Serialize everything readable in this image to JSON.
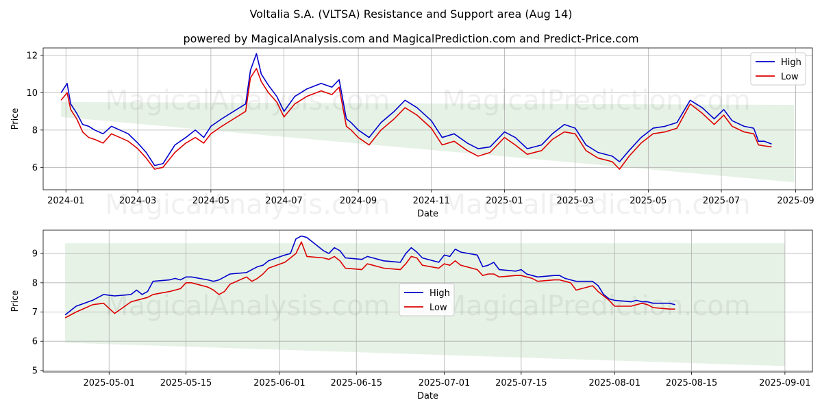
{
  "title": "Voltalia S.A. (VLTSA) Resistance and Support area (Aug 14)",
  "subtitle": "powered by MagicalAnalysis.com and MagicalPrediction.com and Predict-Price.com",
  "watermark": "MagicalAnalysis.com      MagicalPrediction.com",
  "colors": {
    "high": "#0000cc",
    "low": "#dd0000",
    "band": "#e6f2e6"
  },
  "chart_data": [
    {
      "type": "line",
      "xlabel": "Date",
      "ylabel": "Price",
      "ylim": [
        4.8,
        12.4
      ],
      "grid": true,
      "legend": "top-right",
      "x_ticks": [
        "2024-01",
        "2024-03",
        "2024-05",
        "2024-07",
        "2024-09",
        "2024-11",
        "2025-01",
        "2025-03",
        "2025-05",
        "2025-07",
        "2025-09"
      ],
      "y_ticks": [
        6,
        8,
        10,
        12
      ],
      "support_band": {
        "x": [
          "2023-12-28",
          "2025-08-31"
        ],
        "upper": [
          9.5,
          9.35
        ],
        "lower": [
          8.7,
          5.2
        ]
      },
      "x": [
        "2023-12-28",
        "2024-01-02",
        "2024-01-05",
        "2024-01-10",
        "2024-01-15",
        "2024-01-20",
        "2024-01-25",
        "2024-02-01",
        "2024-02-08",
        "2024-02-15",
        "2024-02-22",
        "2024-03-01",
        "2024-03-08",
        "2024-03-15",
        "2024-03-22",
        "2024-04-01",
        "2024-04-10",
        "2024-04-18",
        "2024-04-25",
        "2024-05-01",
        "2024-05-10",
        "2024-05-20",
        "2024-05-30",
        "2024-06-03",
        "2024-06-08",
        "2024-06-12",
        "2024-06-18",
        "2024-06-25",
        "2024-07-01",
        "2024-07-10",
        "2024-07-20",
        "2024-08-01",
        "2024-08-10",
        "2024-08-16",
        "2024-08-22",
        "2024-08-26",
        "2024-09-01",
        "2024-09-10",
        "2024-09-20",
        "2024-10-01",
        "2024-10-10",
        "2024-10-20",
        "2024-11-01",
        "2024-11-10",
        "2024-11-20",
        "2024-12-01",
        "2024-12-10",
        "2024-12-20",
        "2025-01-01",
        "2025-01-10",
        "2025-01-20",
        "2025-02-01",
        "2025-02-10",
        "2025-02-20",
        "2025-03-01",
        "2025-03-10",
        "2025-03-20",
        "2025-04-01",
        "2025-04-07",
        "2025-04-15",
        "2025-04-25",
        "2025-05-05",
        "2025-05-15",
        "2025-05-25",
        "2025-06-05",
        "2025-06-15",
        "2025-06-25",
        "2025-07-03",
        "2025-07-10",
        "2025-07-20",
        "2025-07-28",
        "2025-08-01",
        "2025-08-06",
        "2025-08-12"
      ],
      "series": [
        {
          "name": "High",
          "values": [
            10.0,
            10.5,
            9.4,
            8.9,
            8.3,
            8.2,
            8.0,
            7.8,
            8.2,
            8.0,
            7.8,
            7.3,
            6.8,
            6.1,
            6.2,
            7.2,
            7.6,
            8.0,
            7.6,
            8.2,
            8.6,
            9.0,
            9.4,
            11.2,
            12.1,
            11.0,
            10.4,
            9.8,
            9.0,
            9.8,
            10.2,
            10.5,
            10.3,
            10.7,
            8.6,
            8.4,
            8.0,
            7.6,
            8.4,
            9.0,
            9.6,
            9.2,
            8.5,
            7.6,
            7.8,
            7.3,
            7.0,
            7.1,
            7.9,
            7.6,
            7.0,
            7.2,
            7.8,
            8.3,
            8.1,
            7.2,
            6.8,
            6.6,
            6.3,
            6.9,
            7.6,
            8.1,
            8.2,
            8.4,
            9.6,
            9.2,
            8.6,
            9.1,
            8.5,
            8.2,
            8.1,
            7.4,
            7.4,
            7.25
          ]
        },
        {
          "name": "Low",
          "values": [
            9.6,
            10.0,
            9.1,
            8.6,
            7.9,
            7.6,
            7.5,
            7.3,
            7.8,
            7.6,
            7.4,
            7.0,
            6.5,
            5.9,
            6.0,
            6.8,
            7.3,
            7.6,
            7.3,
            7.8,
            8.2,
            8.6,
            9.0,
            10.8,
            11.3,
            10.6,
            10.0,
            9.5,
            8.7,
            9.4,
            9.8,
            10.1,
            9.9,
            10.3,
            8.2,
            8.0,
            7.6,
            7.2,
            8.0,
            8.6,
            9.2,
            8.8,
            8.1,
            7.2,
            7.4,
            6.9,
            6.6,
            6.8,
            7.6,
            7.2,
            6.7,
            6.9,
            7.5,
            7.9,
            7.8,
            6.9,
            6.5,
            6.3,
            5.9,
            6.6,
            7.3,
            7.8,
            7.9,
            8.1,
            9.4,
            8.9,
            8.3,
            8.8,
            8.2,
            7.9,
            7.8,
            7.2,
            7.15,
            7.1
          ]
        }
      ]
    },
    {
      "type": "line",
      "xlabel": "Date",
      "ylabel": "Price",
      "ylim": [
        4.95,
        9.8
      ],
      "grid": true,
      "legend": "center",
      "x_ticks": [
        "2025-05-01",
        "2025-05-15",
        "2025-06-01",
        "2025-06-15",
        "2025-07-01",
        "2025-07-15",
        "2025-08-01",
        "2025-08-15",
        "2025-09-01"
      ],
      "y_ticks": [
        5,
        6,
        7,
        8,
        9
      ],
      "support_band": {
        "x": [
          "2025-04-23",
          "2025-09-01"
        ],
        "upper": [
          9.35,
          9.35
        ],
        "lower": [
          5.95,
          5.15
        ]
      },
      "x": [
        "2025-04-23",
        "2025-04-25",
        "2025-04-28",
        "2025-04-30",
        "2025-05-02",
        "2025-05-05",
        "2025-05-06",
        "2025-05-07",
        "2025-05-08",
        "2025-05-09",
        "2025-05-12",
        "2025-05-13",
        "2025-05-14",
        "2025-05-15",
        "2025-05-16",
        "2025-05-19",
        "2025-05-20",
        "2025-05-21",
        "2025-05-22",
        "2025-05-23",
        "2025-05-26",
        "2025-05-27",
        "2025-05-28",
        "2025-05-29",
        "2025-05-30",
        "2025-06-02",
        "2025-06-03",
        "2025-06-04",
        "2025-06-05",
        "2025-06-06",
        "2025-06-09",
        "2025-06-10",
        "2025-06-11",
        "2025-06-12",
        "2025-06-13",
        "2025-06-16",
        "2025-06-17",
        "2025-06-18",
        "2025-06-19",
        "2025-06-20",
        "2025-06-23",
        "2025-06-24",
        "2025-06-25",
        "2025-06-26",
        "2025-06-27",
        "2025-06-30",
        "2025-07-01",
        "2025-07-02",
        "2025-07-03",
        "2025-07-04",
        "2025-07-07",
        "2025-07-08",
        "2025-07-09",
        "2025-07-10",
        "2025-07-11",
        "2025-07-14",
        "2025-07-15",
        "2025-07-16",
        "2025-07-17",
        "2025-07-18",
        "2025-07-21",
        "2025-07-22",
        "2025-07-23",
        "2025-07-24",
        "2025-07-25",
        "2025-07-28",
        "2025-07-29",
        "2025-07-30",
        "2025-07-31",
        "2025-08-01",
        "2025-08-04",
        "2025-08-05",
        "2025-08-06",
        "2025-08-07",
        "2025-08-08",
        "2025-08-11",
        "2025-08-12"
      ],
      "series": [
        {
          "name": "High",
          "values": [
            6.9,
            7.2,
            7.4,
            7.6,
            7.55,
            7.6,
            7.75,
            7.6,
            7.7,
            8.05,
            8.1,
            8.15,
            8.1,
            8.2,
            8.2,
            8.1,
            8.05,
            8.1,
            8.2,
            8.3,
            8.35,
            8.45,
            8.55,
            8.6,
            8.75,
            8.95,
            9.0,
            9.5,
            9.6,
            9.55,
            9.1,
            9.0,
            9.2,
            9.1,
            8.85,
            8.8,
            8.9,
            8.85,
            8.8,
            8.75,
            8.7,
            9.0,
            9.2,
            9.05,
            8.85,
            8.7,
            8.95,
            8.9,
            9.15,
            9.05,
            8.95,
            8.55,
            8.6,
            8.7,
            8.45,
            8.4,
            8.45,
            8.3,
            8.25,
            8.2,
            8.25,
            8.25,
            8.15,
            8.1,
            8.05,
            8.05,
            7.9,
            7.6,
            7.45,
            7.4,
            7.35,
            7.4,
            7.35,
            7.35,
            7.3,
            7.3,
            7.25
          ]
        },
        {
          "name": "Low",
          "values": [
            6.8,
            7.0,
            7.25,
            7.3,
            6.95,
            7.35,
            7.4,
            7.45,
            7.5,
            7.6,
            7.7,
            7.75,
            7.8,
            8.0,
            8.0,
            7.85,
            7.75,
            7.6,
            7.7,
            7.95,
            8.2,
            8.05,
            8.15,
            8.3,
            8.5,
            8.7,
            8.85,
            9.0,
            9.4,
            8.9,
            8.85,
            8.8,
            8.9,
            8.75,
            8.5,
            8.45,
            8.65,
            8.6,
            8.55,
            8.5,
            8.45,
            8.65,
            8.9,
            8.85,
            8.6,
            8.5,
            8.65,
            8.6,
            8.75,
            8.6,
            8.45,
            8.25,
            8.3,
            8.3,
            8.2,
            8.25,
            8.25,
            8.2,
            8.15,
            8.05,
            8.1,
            8.1,
            8.05,
            8.0,
            7.75,
            7.9,
            7.7,
            7.55,
            7.4,
            7.2,
            7.2,
            7.25,
            7.3,
            7.25,
            7.15,
            7.1,
            7.1
          ]
        }
      ]
    }
  ]
}
